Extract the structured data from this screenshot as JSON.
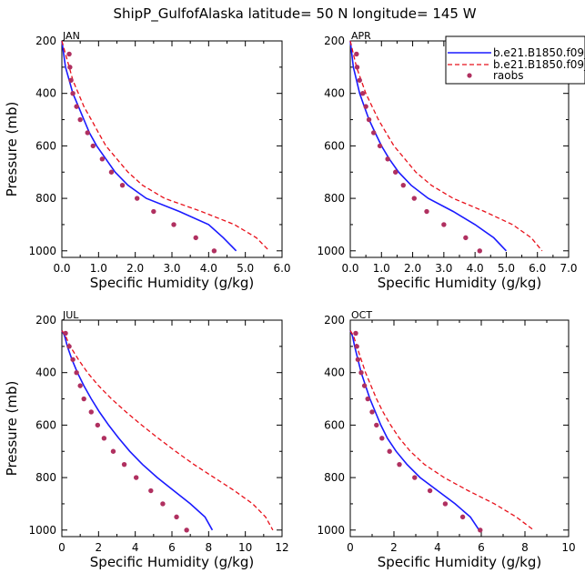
{
  "title": "ShipP_GulfofAlaska  latitude= 50 N longitude= 145 W",
  "colors": {
    "model1": "#1a1aff",
    "model2": "#e8101a",
    "raobs": "#b03060"
  },
  "legend": {
    "placement": "top-right",
    "entries": [
      {
        "label": "b.e21.B1850.f09_",
        "style": "solid-line",
        "color": "#1a1aff"
      },
      {
        "label": "b.e21.B1850.f09_",
        "style": "dashed-line",
        "color": "#e8101a"
      },
      {
        "label": "raobs",
        "style": "dots",
        "color": "#b03060"
      }
    ]
  },
  "chart_data": [
    {
      "type": "line",
      "panel_label": "JAN",
      "xlabel": "Specific Humidity (g/kg)",
      "ylabel": "Pressure (mb)",
      "xlim": [
        0,
        6
      ],
      "ylim": [
        200,
        1025
      ],
      "y_reversed": true,
      "xticks": [
        "0.0",
        "1.0",
        "2.0",
        "3.0",
        "4.0",
        "5.0",
        "6.0"
      ],
      "yticks": [
        "200",
        "400",
        "600",
        "800",
        "1000"
      ],
      "series": [
        {
          "style": "solid",
          "color": "#1a1aff",
          "points": [
            [
              0.0,
              200
            ],
            [
              0.05,
              250
            ],
            [
              0.1,
              300
            ],
            [
              0.2,
              350
            ],
            [
              0.3,
              400
            ],
            [
              0.45,
              450
            ],
            [
              0.6,
              500
            ],
            [
              0.75,
              550
            ],
            [
              0.95,
              600
            ],
            [
              1.2,
              650
            ],
            [
              1.45,
              700
            ],
            [
              1.8,
              750
            ],
            [
              2.3,
              800
            ],
            [
              3.2,
              850
            ],
            [
              4.0,
              900
            ],
            [
              4.4,
              950
            ],
            [
              4.75,
              1000
            ]
          ]
        },
        {
          "style": "dashed",
          "color": "#e8101a",
          "points": [
            [
              0.0,
              200
            ],
            [
              0.1,
              250
            ],
            [
              0.2,
              300
            ],
            [
              0.3,
              350
            ],
            [
              0.45,
              400
            ],
            [
              0.6,
              450
            ],
            [
              0.8,
              500
            ],
            [
              1.0,
              550
            ],
            [
              1.2,
              600
            ],
            [
              1.5,
              650
            ],
            [
              1.8,
              700
            ],
            [
              2.2,
              750
            ],
            [
              2.8,
              800
            ],
            [
              3.8,
              850
            ],
            [
              4.7,
              900
            ],
            [
              5.3,
              950
            ],
            [
              5.65,
              1000
            ]
          ]
        },
        {
          "style": "dots",
          "color": "#b03060",
          "points": [
            [
              0.2,
              250
            ],
            [
              0.22,
              300
            ],
            [
              0.25,
              350
            ],
            [
              0.3,
              400
            ],
            [
              0.4,
              450
            ],
            [
              0.5,
              500
            ],
            [
              0.7,
              550
            ],
            [
              0.85,
              600
            ],
            [
              1.1,
              650
            ],
            [
              1.35,
              700
            ],
            [
              1.65,
              750
            ],
            [
              2.05,
              800
            ],
            [
              2.5,
              850
            ],
            [
              3.05,
              900
            ],
            [
              3.65,
              950
            ],
            [
              4.15,
              1000
            ]
          ]
        }
      ]
    },
    {
      "type": "line",
      "panel_label": "APR",
      "xlabel": "Specific Humidity (g/kg)",
      "ylabel": "",
      "xlim": [
        0,
        7
      ],
      "ylim": [
        200,
        1025
      ],
      "y_reversed": true,
      "xticks": [
        "0.0",
        "1.0",
        "2.0",
        "3.0",
        "4.0",
        "5.0",
        "6.0",
        "7.0"
      ],
      "yticks": [
        "200",
        "400",
        "600",
        "800",
        "1000"
      ],
      "series": [
        {
          "style": "solid",
          "color": "#1a1aff",
          "points": [
            [
              0.0,
              200
            ],
            [
              0.05,
              250
            ],
            [
              0.1,
              300
            ],
            [
              0.2,
              350
            ],
            [
              0.3,
              400
            ],
            [
              0.45,
              450
            ],
            [
              0.6,
              500
            ],
            [
              0.8,
              550
            ],
            [
              1.0,
              600
            ],
            [
              1.25,
              650
            ],
            [
              1.55,
              700
            ],
            [
              1.95,
              750
            ],
            [
              2.5,
              800
            ],
            [
              3.3,
              850
            ],
            [
              4.0,
              900
            ],
            [
              4.6,
              950
            ],
            [
              5.0,
              1000
            ]
          ]
        },
        {
          "style": "dashed",
          "color": "#e8101a",
          "points": [
            [
              0.0,
              200
            ],
            [
              0.1,
              250
            ],
            [
              0.2,
              300
            ],
            [
              0.35,
              350
            ],
            [
              0.5,
              400
            ],
            [
              0.7,
              450
            ],
            [
              0.9,
              500
            ],
            [
              1.15,
              550
            ],
            [
              1.4,
              600
            ],
            [
              1.75,
              650
            ],
            [
              2.1,
              700
            ],
            [
              2.6,
              750
            ],
            [
              3.3,
              800
            ],
            [
              4.3,
              850
            ],
            [
              5.2,
              900
            ],
            [
              5.8,
              950
            ],
            [
              6.15,
              1000
            ]
          ]
        },
        {
          "style": "dots",
          "color": "#b03060",
          "points": [
            [
              0.2,
              250
            ],
            [
              0.22,
              300
            ],
            [
              0.3,
              350
            ],
            [
              0.4,
              400
            ],
            [
              0.5,
              450
            ],
            [
              0.6,
              500
            ],
            [
              0.75,
              550
            ],
            [
              0.95,
              600
            ],
            [
              1.2,
              650
            ],
            [
              1.45,
              700
            ],
            [
              1.7,
              750
            ],
            [
              2.05,
              800
            ],
            [
              2.45,
              850
            ],
            [
              3.0,
              900
            ],
            [
              3.7,
              950
            ],
            [
              4.15,
              1000
            ]
          ]
        }
      ]
    },
    {
      "type": "line",
      "panel_label": "JUL",
      "xlabel": "Specific Humidity (g/kg)",
      "ylabel": "Pressure (mb)",
      "xlim": [
        0,
        12
      ],
      "ylim": [
        200,
        1025
      ],
      "y_reversed": true,
      "xticks": [
        "0",
        "2",
        "4",
        "6",
        "8",
        "10",
        "12"
      ],
      "yticks": [
        "200",
        "400",
        "600",
        "800",
        "1000"
      ],
      "series": [
        {
          "style": "solid",
          "color": "#1a1aff",
          "points": [
            [
              0.0,
              240
            ],
            [
              0.15,
              260
            ],
            [
              0.3,
              300
            ],
            [
              0.55,
              350
            ],
            [
              0.85,
              400
            ],
            [
              1.2,
              450
            ],
            [
              1.6,
              500
            ],
            [
              2.05,
              550
            ],
            [
              2.55,
              600
            ],
            [
              3.1,
              650
            ],
            [
              3.7,
              700
            ],
            [
              4.4,
              750
            ],
            [
              5.2,
              800
            ],
            [
              6.1,
              850
            ],
            [
              7.0,
              900
            ],
            [
              7.8,
              950
            ],
            [
              8.2,
              1000
            ]
          ]
        },
        {
          "style": "dashed",
          "color": "#e8101a",
          "points": [
            [
              0.0,
              240
            ],
            [
              0.2,
              260
            ],
            [
              0.45,
              300
            ],
            [
              0.9,
              350
            ],
            [
              1.4,
              400
            ],
            [
              2.0,
              450
            ],
            [
              2.7,
              500
            ],
            [
              3.5,
              550
            ],
            [
              4.35,
              600
            ],
            [
              5.25,
              650
            ],
            [
              6.2,
              700
            ],
            [
              7.2,
              750
            ],
            [
              8.3,
              800
            ],
            [
              9.4,
              850
            ],
            [
              10.4,
              900
            ],
            [
              11.1,
              950
            ],
            [
              11.5,
              1000
            ]
          ]
        },
        {
          "style": "dots",
          "color": "#b03060",
          "points": [
            [
              0.2,
              250
            ],
            [
              0.4,
              300
            ],
            [
              0.6,
              350
            ],
            [
              0.8,
              400
            ],
            [
              1.0,
              450
            ],
            [
              1.2,
              500
            ],
            [
              1.6,
              550
            ],
            [
              1.95,
              600
            ],
            [
              2.3,
              650
            ],
            [
              2.8,
              700
            ],
            [
              3.4,
              750
            ],
            [
              4.05,
              800
            ],
            [
              4.85,
              850
            ],
            [
              5.5,
              900
            ],
            [
              6.25,
              950
            ],
            [
              6.8,
              1000
            ]
          ]
        }
      ]
    },
    {
      "type": "line",
      "panel_label": "OCT",
      "xlabel": "Specific Humidity (g/kg)",
      "ylabel": "",
      "xlim": [
        0,
        10
      ],
      "ylim": [
        200,
        1025
      ],
      "y_reversed": true,
      "xticks": [
        "0",
        "2",
        "4",
        "6",
        "8",
        "10"
      ],
      "yticks": [
        "200",
        "400",
        "600",
        "800",
        "1000"
      ],
      "series": [
        {
          "style": "solid",
          "color": "#1a1aff",
          "points": [
            [
              0.0,
              240
            ],
            [
              0.1,
              260
            ],
            [
              0.2,
              300
            ],
            [
              0.35,
              350
            ],
            [
              0.5,
              400
            ],
            [
              0.7,
              450
            ],
            [
              0.9,
              500
            ],
            [
              1.15,
              550
            ],
            [
              1.4,
              600
            ],
            [
              1.7,
              650
            ],
            [
              2.1,
              700
            ],
            [
              2.6,
              750
            ],
            [
              3.2,
              800
            ],
            [
              4.0,
              850
            ],
            [
              4.8,
              900
            ],
            [
              5.5,
              950
            ],
            [
              5.9,
              1000
            ]
          ]
        },
        {
          "style": "dashed",
          "color": "#e8101a",
          "points": [
            [
              0.0,
              240
            ],
            [
              0.15,
              260
            ],
            [
              0.3,
              300
            ],
            [
              0.5,
              350
            ],
            [
              0.7,
              400
            ],
            [
              0.95,
              450
            ],
            [
              1.2,
              500
            ],
            [
              1.5,
              550
            ],
            [
              1.85,
              600
            ],
            [
              2.25,
              650
            ],
            [
              2.75,
              700
            ],
            [
              3.4,
              750
            ],
            [
              4.3,
              800
            ],
            [
              5.4,
              850
            ],
            [
              6.6,
              900
            ],
            [
              7.6,
              950
            ],
            [
              8.4,
              1000
            ]
          ]
        },
        {
          "style": "dots",
          "color": "#b03060",
          "points": [
            [
              0.25,
              250
            ],
            [
              0.3,
              300
            ],
            [
              0.35,
              350
            ],
            [
              0.5,
              400
            ],
            [
              0.65,
              450
            ],
            [
              0.8,
              500
            ],
            [
              1.0,
              550
            ],
            [
              1.2,
              600
            ],
            [
              1.45,
              650
            ],
            [
              1.8,
              700
            ],
            [
              2.25,
              750
            ],
            [
              2.95,
              800
            ],
            [
              3.65,
              850
            ],
            [
              4.35,
              900
            ],
            [
              5.15,
              950
            ],
            [
              5.95,
              1000
            ]
          ]
        }
      ]
    }
  ]
}
